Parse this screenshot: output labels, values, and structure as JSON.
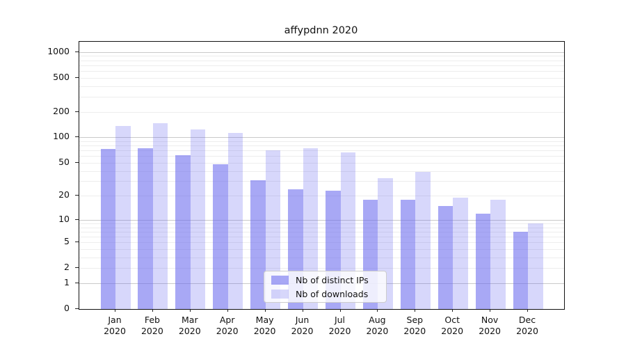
{
  "title": "affypdnn 2020",
  "colors": {
    "bar_ips": "rgba(102,102,238,0.57)",
    "bar_downloads": "rgba(102,102,238,0.26)",
    "major_grid": "#c9c9c9",
    "minor_grid": "#ededed",
    "spine": "#111111"
  },
  "chart_data": {
    "type": "bar",
    "title": "affypdnn 2020",
    "x_tick_months": [
      "Jan",
      "Feb",
      "Mar",
      "Apr",
      "May",
      "Jun",
      "Jul",
      "Aug",
      "Sep",
      "Oct",
      "Nov",
      "Dec"
    ],
    "x_tick_year": "2020",
    "categories": [
      "Jan 2020",
      "Feb 2020",
      "Mar 2020",
      "Apr 2020",
      "May 2020",
      "Jun 2020",
      "Jul 2020",
      "Aug 2020",
      "Sep 2020",
      "Oct 2020",
      "Nov 2020",
      "Dec 2020"
    ],
    "series": [
      {
        "name": "Nb of distinct IPs",
        "values": [
          73,
          75,
          61,
          48,
          31,
          24,
          23,
          18,
          18,
          15,
          12,
          7
        ]
      },
      {
        "name": "Nb of downloads",
        "values": [
          136,
          147,
          124,
          112,
          70,
          75,
          66,
          33,
          39,
          19,
          18,
          9
        ]
      }
    ],
    "yscale": "log1p",
    "yticks": [
      0,
      1,
      2,
      5,
      10,
      20,
      50,
      100,
      200,
      500,
      1000
    ],
    "ytick_labels": [
      "0",
      "1",
      "2",
      "5",
      "10",
      "20",
      "50",
      "100",
      "200",
      "500",
      "1000"
    ],
    "grid_major": [
      1,
      10,
      100,
      1000
    ],
    "ylim": [
      0,
      1316
    ],
    "grid": "horizontal",
    "legend_position": "lower-center"
  }
}
